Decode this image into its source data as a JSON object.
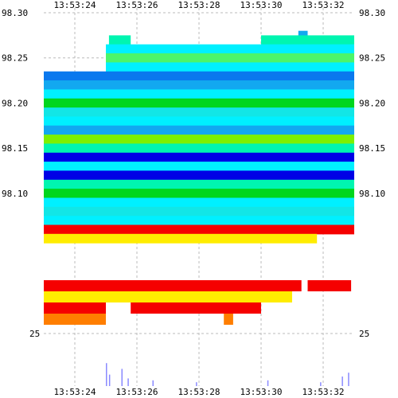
{
  "chart_data": {
    "type": "heatmap",
    "title": "",
    "x_ticks": [
      "13:53:24",
      "13:53:26",
      "13:53:28",
      "13:53:30",
      "13:53:32"
    ],
    "y_ticks_price": [
      "98.30",
      "98.25",
      "98.20",
      "98.15",
      "98.10"
    ],
    "y_range_price": [
      98.05,
      98.3
    ],
    "y_tick_volume": "25",
    "time_range": [
      "13:53:23",
      "13:53:33"
    ],
    "grid": true,
    "palette": {
      "blue_dark": "#0000e6",
      "blue": "#0a78ee",
      "azure": "#12a8f0",
      "cyan": "#00f0ff",
      "aqua": "#12e6e6",
      "mint": "#00f5b0",
      "green_light": "#4cf56a",
      "green": "#00d61e",
      "lime": "#7ef000",
      "yellow": "#ffec00",
      "orange": "#ff7e00",
      "red": "#f50000",
      "purple": "#8c1cff",
      "volume_bar": "#8a8aff"
    },
    "heat_bands": [
      {
        "price": 98.275,
        "t0": "13:53:31.2",
        "t1": "13:53:31.5",
        "color": "azure"
      },
      {
        "price": 98.27,
        "t0": "13:53:25.1",
        "t1": "13:53:25.8",
        "color": "mint"
      },
      {
        "price": 98.27,
        "t0": "13:53:30.0",
        "t1": "13:53:33.0",
        "color": "mint"
      },
      {
        "price": 98.26,
        "t0": "13:53:25.0",
        "t1": "13:53:33.0",
        "color": "cyan"
      },
      {
        "price": 98.25,
        "t0": "13:53:25.0",
        "t1": "13:53:33.0",
        "color": "green_light"
      },
      {
        "price": 98.24,
        "t0": "13:53:25.0",
        "t1": "13:53:33.0",
        "color": "cyan"
      },
      {
        "price": 98.23,
        "t0": "13:53:23.0",
        "t1": "13:53:33.0",
        "color": "blue"
      },
      {
        "price": 98.22,
        "t0": "13:53:23.0",
        "t1": "13:53:33.0",
        "color": "azure"
      },
      {
        "price": 98.21,
        "t0": "13:53:23.0",
        "t1": "13:53:33.0",
        "color": "cyan"
      },
      {
        "price": 98.2,
        "t0": "13:53:23.0",
        "t1": "13:53:33.0",
        "color": "green"
      },
      {
        "price": 98.19,
        "t0": "13:53:23.0",
        "t1": "13:53:33.0",
        "color": "aqua"
      },
      {
        "price": 98.18,
        "t0": "13:53:23.0",
        "t1": "13:53:33.0",
        "color": "cyan"
      },
      {
        "price": 98.17,
        "t0": "13:53:23.0",
        "t1": "13:53:33.0",
        "color": "azure"
      },
      {
        "price": 98.16,
        "t0": "13:53:23.0",
        "t1": "13:53:33.0",
        "color": "lime"
      },
      {
        "price": 98.15,
        "t0": "13:53:23.0",
        "t1": "13:53:33.0",
        "color": "mint"
      },
      {
        "price": 98.14,
        "t0": "13:53:23.0",
        "t1": "13:53:33.0",
        "color": "blue_dark"
      },
      {
        "price": 98.13,
        "t0": "13:53:23.0",
        "t1": "13:53:33.0",
        "color": "cyan"
      },
      {
        "price": 98.12,
        "t0": "13:53:23.0",
        "t1": "13:53:33.0",
        "color": "blue_dark"
      },
      {
        "price": 98.11,
        "t0": "13:53:23.0",
        "t1": "13:53:33.0",
        "color": "mint"
      },
      {
        "price": 98.1,
        "t0": "13:53:23.0",
        "t1": "13:53:33.0",
        "color": "green"
      },
      {
        "price": 98.09,
        "t0": "13:53:23.0",
        "t1": "13:53:33.0",
        "color": "cyan"
      },
      {
        "price": 98.08,
        "t0": "13:53:23.0",
        "t1": "13:53:33.0",
        "color": "aqua"
      },
      {
        "price": 98.07,
        "t0": "13:53:23.0",
        "t1": "13:53:33.0",
        "color": "cyan"
      },
      {
        "price": 98.06,
        "t0": "13:53:23.0",
        "t1": "13:53:33.0",
        "color": "red"
      },
      {
        "price": 98.05,
        "t0": "13:53:23.0",
        "t1": "13:53:31.8",
        "color": "yellow"
      }
    ],
    "lower_bands": [
      {
        "row": 0,
        "t0": "13:53:23.0",
        "t1": "13:53:31.3",
        "color": "red"
      },
      {
        "row": 0,
        "t0": "13:53:31.5",
        "t1": "13:53:32.9",
        "color": "red"
      },
      {
        "row": 1,
        "t0": "13:53:23.0",
        "t1": "13:53:31.0",
        "color": "yellow"
      },
      {
        "row": 2,
        "t0": "13:53:23.0",
        "t1": "13:53:25.0",
        "color": "red"
      },
      {
        "row": 2,
        "t0": "13:53:25.8",
        "t1": "13:53:30.0",
        "color": "red"
      },
      {
        "row": 3,
        "t0": "13:53:23.0",
        "t1": "13:53:25.0",
        "color": "orange"
      },
      {
        "row": 3,
        "t0": "13:53:28.8",
        "t1": "13:53:29.1",
        "color": "orange"
      }
    ],
    "volume": [
      {
        "t": "13:53:25.0",
        "v": 12
      },
      {
        "t": "13:53:25.1",
        "v": 6
      },
      {
        "t": "13:53:25.5",
        "v": 9
      },
      {
        "t": "13:53:25.7",
        "v": 4
      },
      {
        "t": "13:53:26.5",
        "v": 3
      },
      {
        "t": "13:53:27.9",
        "v": 2
      },
      {
        "t": "13:53:30.2",
        "v": 3
      },
      {
        "t": "13:53:31.9",
        "v": 2
      },
      {
        "t": "13:53:32.6",
        "v": 5
      },
      {
        "t": "13:53:32.8",
        "v": 7
      }
    ]
  }
}
